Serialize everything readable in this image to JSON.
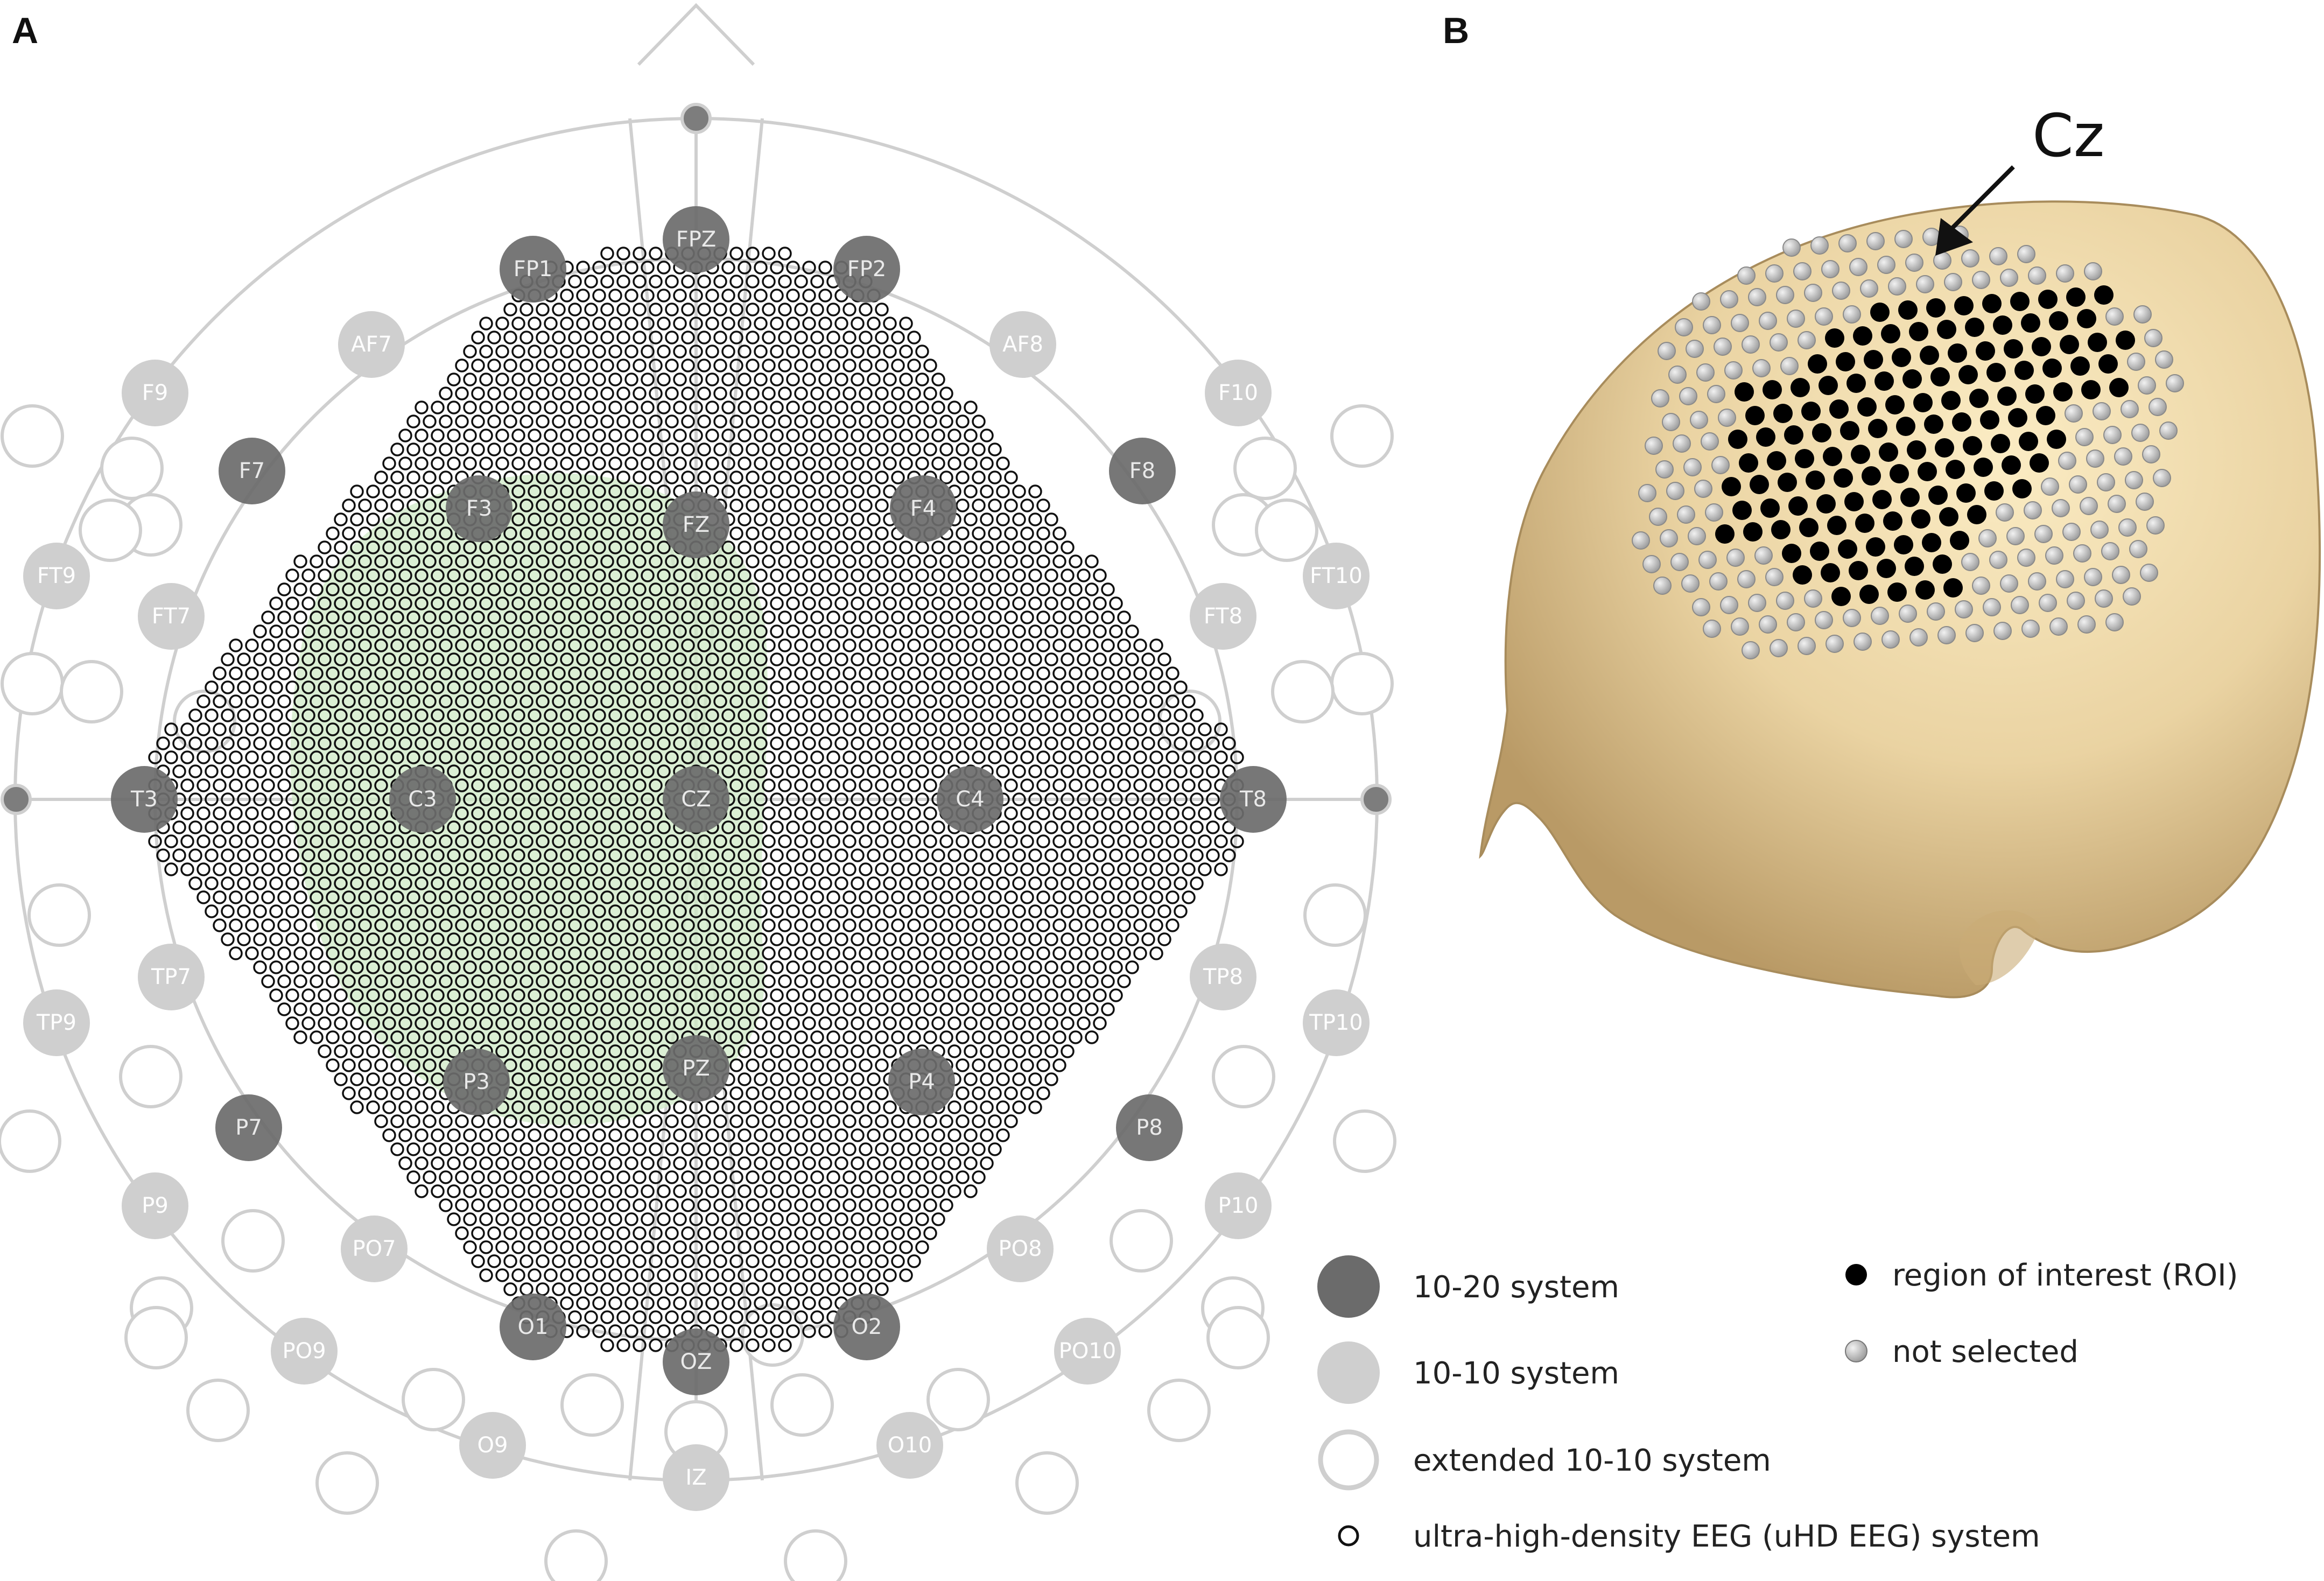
{
  "panels": {
    "a": "A",
    "b": "B"
  },
  "colors": {
    "system_1020": "#6b6b6b",
    "system_1010": "#cfcfcf",
    "extended_ring": "#cfcfcf",
    "uhd_ring": "#111111",
    "roi_fill": "#000000",
    "not_selected_fill": "#bdbdbd",
    "green_region": "#cfe9c6",
    "head_skin": "#e9d3a3"
  },
  "electrodes_1020": [
    {
      "label": "FP1"
    },
    {
      "label": "FPZ"
    },
    {
      "label": "FP2"
    },
    {
      "label": "F7"
    },
    {
      "label": "F3"
    },
    {
      "label": "FZ"
    },
    {
      "label": "F4"
    },
    {
      "label": "F8"
    },
    {
      "label": "T3"
    },
    {
      "label": "C3"
    },
    {
      "label": "CZ"
    },
    {
      "label": "C4"
    },
    {
      "label": "T8"
    },
    {
      "label": "P7"
    },
    {
      "label": "P3"
    },
    {
      "label": "PZ"
    },
    {
      "label": "P4"
    },
    {
      "label": "P8"
    },
    {
      "label": "O1"
    },
    {
      "label": "OZ"
    },
    {
      "label": "O2"
    }
  ],
  "electrodes_1010": [
    {
      "label": "F9"
    },
    {
      "label": "F10"
    },
    {
      "label": "FT9"
    },
    {
      "label": "FT10"
    },
    {
      "label": "FT7"
    },
    {
      "label": "FT8"
    },
    {
      "label": "TP7"
    },
    {
      "label": "TP8"
    },
    {
      "label": "TP9"
    },
    {
      "label": "TP10"
    },
    {
      "label": "P9"
    },
    {
      "label": "P10"
    },
    {
      "label": "PO9"
    },
    {
      "label": "PO10"
    },
    {
      "label": "O9"
    },
    {
      "label": "O10"
    },
    {
      "label": "IZ"
    },
    {
      "label": "AF7"
    },
    {
      "label": "AF8"
    },
    {
      "label": "PO7"
    },
    {
      "label": "PO8"
    }
  ],
  "head_model": {
    "pointer_label": "Cz"
  },
  "legend": {
    "left": [
      {
        "symbol": "dark-disc",
        "label": "10-20 system"
      },
      {
        "symbol": "light-disc",
        "label": "10-10 system"
      },
      {
        "symbol": "ring",
        "label": "extended 10-10 system"
      },
      {
        "symbol": "small-ring",
        "label": "ultra-high-density EEG (uHD EEG) system"
      }
    ],
    "right": [
      {
        "symbol": "black-dot",
        "label": "region of interest (ROI)"
      },
      {
        "symbol": "gray-dot",
        "label": "not selected"
      }
    ]
  }
}
